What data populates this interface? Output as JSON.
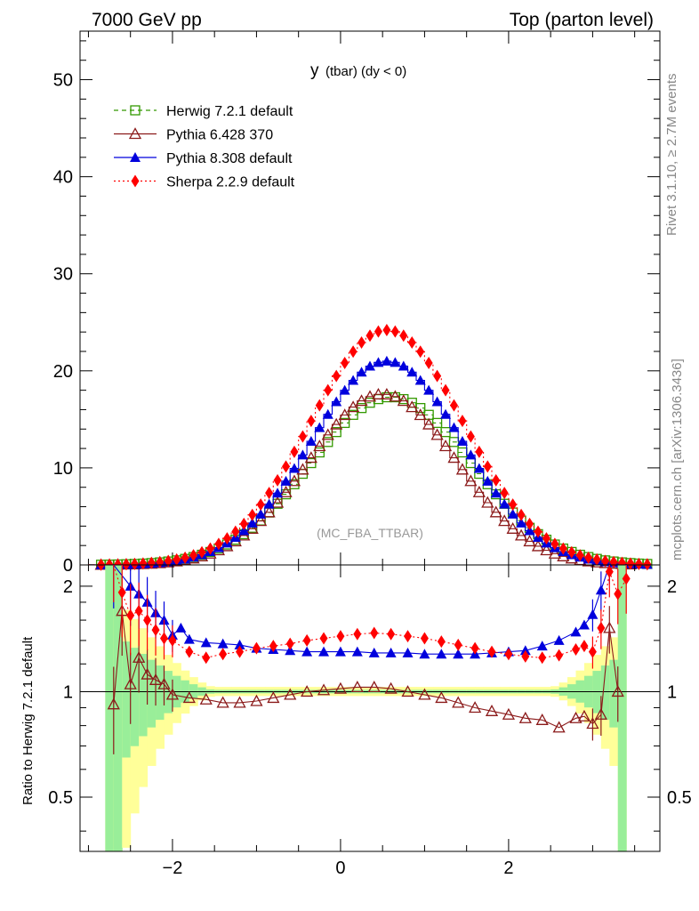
{
  "header": {
    "left": "7000 GeV pp",
    "right": "Top (parton level)"
  },
  "side_text": {
    "rivet": "Rivet 3.1.10, ≥ 2.7M events",
    "mcplots": "mcplots.cern.ch [arXiv:1306.3436]"
  },
  "chart_data": {
    "type": "line",
    "title": "y (tbar) (dy < 0)",
    "title_main": "y",
    "title_sub": "(tbar) (dy < 0)",
    "watermark": "(MC_FBA_TTBAR)",
    "x_range": [
      -3.1,
      3.8
    ],
    "x_ticks": [
      -2,
      0,
      2
    ],
    "main": {
      "ylim": [
        0,
        55
      ],
      "y_ticks": [
        0,
        10,
        20,
        30,
        40,
        50
      ]
    },
    "ratio": {
      "ylabel": "Ratio to Herwig 7.2.1 default",
      "ylim": [
        0.35,
        2.3
      ],
      "y_ticks": [
        0.5,
        1,
        2
      ]
    },
    "legend": {
      "placement": "top-left",
      "entries": [
        {
          "label": "Herwig 7.2.1 default",
          "color": "#339900",
          "marker": "open-square",
          "line": "dashed"
        },
        {
          "label": "Pythia 6.428 370",
          "color": "#8b1a1a",
          "marker": "open-triangle",
          "line": "solid"
        },
        {
          "label": "Pythia 8.308 default",
          "color": "#0000dd",
          "marker": "filled-triangle",
          "line": "solid"
        },
        {
          "label": "Sherpa 2.2.9 default",
          "color": "#ff0000",
          "marker": "filled-diamond",
          "line": "dotted"
        }
      ]
    },
    "series": [
      {
        "name": "Herwig 7.2.1 default",
        "x_center": 0.6,
        "sigma": 0.95,
        "peak": 17.3
      },
      {
        "name": "Pythia 6.428 370",
        "x_center": 0.5,
        "sigma": 0.88,
        "peak": 17.6
      },
      {
        "name": "Pythia 8.308 default",
        "x_center": 0.55,
        "sigma": 0.9,
        "peak": 21.0
      },
      {
        "name": "Sherpa 2.2.9 default",
        "x_center": 0.55,
        "sigma": 0.91,
        "peak": 24.2
      }
    ],
    "ratio_points": {
      "pythia6": [
        [
          -2.7,
          0.92
        ],
        [
          -2.6,
          1.7
        ],
        [
          -2.5,
          1.05
        ],
        [
          -2.4,
          1.25
        ],
        [
          -2.3,
          1.12
        ],
        [
          -2.2,
          1.08
        ],
        [
          -2.1,
          1.05
        ],
        [
          -2.0,
          0.98
        ],
        [
          -1.8,
          0.96
        ],
        [
          -1.6,
          0.95
        ],
        [
          -1.4,
          0.93
        ],
        [
          -1.2,
          0.93
        ],
        [
          -1.0,
          0.94
        ],
        [
          -0.8,
          0.96
        ],
        [
          -0.6,
          0.98
        ],
        [
          -0.4,
          1.0
        ],
        [
          -0.2,
          1.01
        ],
        [
          0.0,
          1.02
        ],
        [
          0.2,
          1.03
        ],
        [
          0.4,
          1.03
        ],
        [
          0.6,
          1.02
        ],
        [
          0.8,
          1.0
        ],
        [
          1.0,
          0.98
        ],
        [
          1.2,
          0.96
        ],
        [
          1.4,
          0.93
        ],
        [
          1.6,
          0.9
        ],
        [
          1.8,
          0.88
        ],
        [
          2.0,
          0.86
        ],
        [
          2.2,
          0.84
        ],
        [
          2.4,
          0.83
        ],
        [
          2.6,
          0.79
        ],
        [
          2.8,
          0.84
        ],
        [
          2.9,
          0.85
        ],
        [
          3.0,
          0.81
        ],
        [
          3.1,
          0.86
        ],
        [
          3.2,
          1.52
        ],
        [
          3.3,
          1.0
        ]
      ],
      "pythia8": [
        [
          -2.7,
          2.4
        ],
        [
          -2.5,
          2.0
        ],
        [
          -2.4,
          1.9
        ],
        [
          -2.3,
          1.8
        ],
        [
          -2.2,
          1.68
        ],
        [
          -2.1,
          1.6
        ],
        [
          -2.0,
          1.45
        ],
        [
          -1.9,
          1.52
        ],
        [
          -1.8,
          1.41
        ],
        [
          -1.6,
          1.38
        ],
        [
          -1.4,
          1.37
        ],
        [
          -1.2,
          1.36
        ],
        [
          -1.0,
          1.33
        ],
        [
          -0.8,
          1.32
        ],
        [
          -0.6,
          1.31
        ],
        [
          -0.4,
          1.3
        ],
        [
          -0.2,
          1.3
        ],
        [
          0.0,
          1.3
        ],
        [
          0.2,
          1.3
        ],
        [
          0.4,
          1.29
        ],
        [
          0.6,
          1.29
        ],
        [
          0.8,
          1.29
        ],
        [
          1.0,
          1.28
        ],
        [
          1.2,
          1.28
        ],
        [
          1.4,
          1.28
        ],
        [
          1.6,
          1.28
        ],
        [
          1.8,
          1.29
        ],
        [
          2.0,
          1.3
        ],
        [
          2.2,
          1.31
        ],
        [
          2.4,
          1.35
        ],
        [
          2.6,
          1.4
        ],
        [
          2.8,
          1.48
        ],
        [
          2.9,
          1.55
        ],
        [
          3.0,
          1.66
        ],
        [
          3.1,
          1.95
        ],
        [
          3.2,
          2.4
        ]
      ],
      "sherpa": [
        [
          -2.7,
          2.5
        ],
        [
          -2.6,
          1.92
        ],
        [
          -2.5,
          1.65
        ],
        [
          -2.4,
          1.7
        ],
        [
          -2.3,
          1.6
        ],
        [
          -2.2,
          1.5
        ],
        [
          -2.1,
          1.42
        ],
        [
          -2.0,
          1.4
        ],
        [
          -1.8,
          1.3
        ],
        [
          -1.6,
          1.25
        ],
        [
          -1.4,
          1.28
        ],
        [
          -1.2,
          1.3
        ],
        [
          -1.0,
          1.33
        ],
        [
          -0.8,
          1.35
        ],
        [
          -0.6,
          1.37
        ],
        [
          -0.4,
          1.4
        ],
        [
          -0.2,
          1.42
        ],
        [
          0.0,
          1.44
        ],
        [
          0.2,
          1.46
        ],
        [
          0.4,
          1.47
        ],
        [
          0.6,
          1.46
        ],
        [
          0.8,
          1.44
        ],
        [
          1.0,
          1.42
        ],
        [
          1.2,
          1.39
        ],
        [
          1.4,
          1.36
        ],
        [
          1.6,
          1.33
        ],
        [
          1.8,
          1.3
        ],
        [
          2.0,
          1.28
        ],
        [
          2.2,
          1.26
        ],
        [
          2.4,
          1.25
        ],
        [
          2.6,
          1.27
        ],
        [
          2.8,
          1.32
        ],
        [
          2.9,
          1.35
        ],
        [
          3.0,
          1.3
        ],
        [
          3.1,
          1.52
        ],
        [
          3.2,
          2.2
        ],
        [
          3.3,
          1.9
        ],
        [
          3.4,
          2.1
        ]
      ]
    }
  }
}
